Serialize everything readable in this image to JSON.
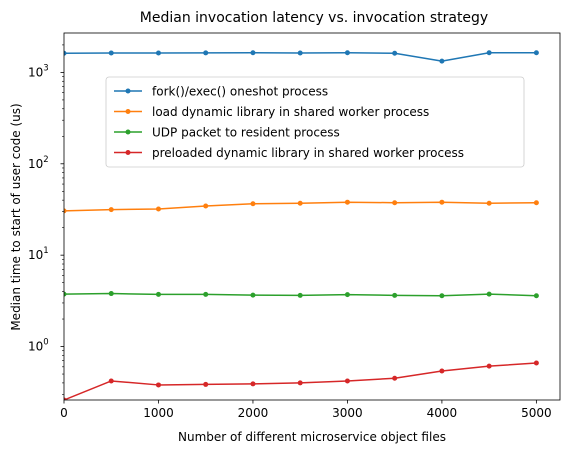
{
  "chart_data": {
    "type": "line",
    "title": "Median invocation latency vs. invocation strategy",
    "xlabel": "Number of different microservice object files",
    "ylabel": "Median time to start of user code (us)",
    "xlim": [
      0,
      5250
    ],
    "ylim": [
      0.26,
      2700
    ],
    "yscale": "log",
    "x_ticks": [
      0,
      1000,
      2000,
      3000,
      4000,
      5000
    ],
    "x_tick_labels": [
      "0",
      "1000",
      "2000",
      "3000",
      "4000",
      "5000"
    ],
    "y_ticks": [
      1,
      10,
      100,
      1000
    ],
    "y_tick_labels": [
      "10",
      "10",
      "10",
      "10"
    ],
    "y_tick_exponents": [
      "0",
      "1",
      "2",
      "3"
    ],
    "grid": false,
    "legend_position": "upper center",
    "x": [
      0,
      500,
      1000,
      1500,
      2000,
      2500,
      3000,
      3500,
      4000,
      4500,
      5000
    ],
    "series": [
      {
        "name": "fork()/exec() oneshot process",
        "color": "#1f77b4",
        "values": [
          1620,
          1630,
          1630,
          1635,
          1640,
          1630,
          1640,
          1620,
          1330,
          1640,
          1640
        ]
      },
      {
        "name": "load dynamic library in shared worker process",
        "color": "#ff7f0e",
        "values": [
          30.5,
          31.5,
          32.0,
          34.5,
          36.5,
          37.0,
          38.0,
          37.5,
          38.0,
          37.0,
          37.5
        ]
      },
      {
        "name": "UDP packet to resident process",
        "color": "#2ca02c",
        "values": [
          3.75,
          3.8,
          3.72,
          3.72,
          3.65,
          3.63,
          3.7,
          3.63,
          3.6,
          3.75,
          3.6
        ]
      },
      {
        "name": "preloaded dynamic library in shared worker process",
        "color": "#d62728",
        "values": [
          0.26,
          0.42,
          0.38,
          0.385,
          0.39,
          0.4,
          0.42,
          0.45,
          0.54,
          0.61,
          0.66
        ]
      }
    ]
  }
}
